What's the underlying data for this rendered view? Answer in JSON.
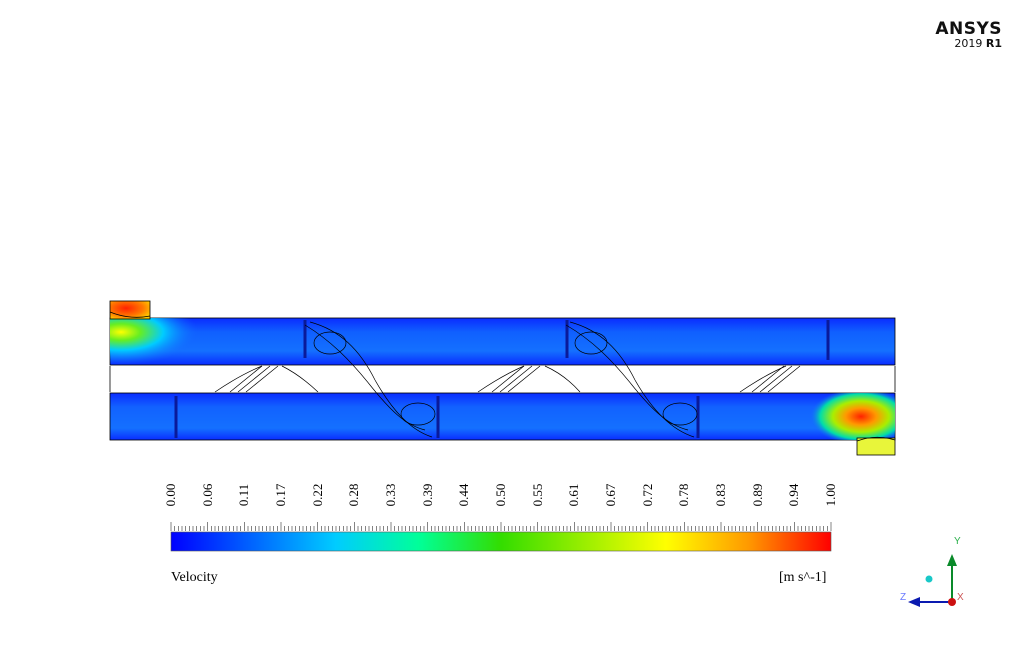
{
  "branding": {
    "brand": "ANSYS",
    "version_year": "2019",
    "version_release": "R1"
  },
  "legend": {
    "title": "Velocity",
    "units": "[m s^-1]",
    "ticks": [
      "0.00",
      "0.06",
      "0.11",
      "0.17",
      "0.22",
      "0.28",
      "0.33",
      "0.39",
      "0.44",
      "0.50",
      "0.55",
      "0.61",
      "0.67",
      "0.72",
      "0.78",
      "0.83",
      "0.89",
      "0.94",
      "1.00"
    ],
    "colors": [
      "#0000ff",
      "#0066ff",
      "#00ccff",
      "#00ff99",
      "#33dd00",
      "#99ee00",
      "#ffff00",
      "#ff9900",
      "#ff0000"
    ]
  },
  "axes": {
    "y": "Y",
    "z": "Z",
    "x": "X"
  },
  "colors": {
    "shell_fill": "#0a3aff",
    "hot": "#ff3300",
    "warm": "#ffff33"
  }
}
